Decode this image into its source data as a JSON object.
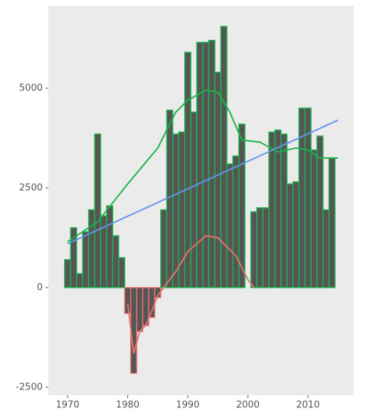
{
  "chart_data": {
    "type": "bar",
    "x": [
      1970,
      1971,
      1972,
      1973,
      1974,
      1975,
      1976,
      1977,
      1978,
      1979,
      1980,
      1981,
      1982,
      1983,
      1984,
      1985,
      1986,
      1987,
      1988,
      1989,
      1990,
      1991,
      1992,
      1993,
      1994,
      1995,
      1996,
      1997,
      1998,
      1999,
      2000,
      2001,
      2002,
      2003,
      2004,
      2005,
      2006,
      2007,
      2008,
      2009,
      2010,
      2011,
      2012,
      2013,
      2014,
      2015
    ],
    "values": [
      700,
      1500,
      350,
      1400,
      1950,
      3850,
      1800,
      2050,
      1300,
      750,
      -650,
      -2150,
      -1100,
      -950,
      -750,
      -250,
      1950,
      4450,
      3850,
      3900,
      5900,
      4400,
      6150,
      6150,
      6200,
      5400,
      6550,
      3100,
      3300,
      4100,
      0,
      1900,
      2000,
      2000,
      3900,
      3950,
      3850,
      2600,
      2650,
      4500,
      4500,
      3450,
      3800,
      1950,
      3250,
      null
    ],
    "bar_fill": "#555555",
    "positive_color": "#1db34a",
    "negative_color": "#e8736c",
    "lines": [
      {
        "color": "#1db34a",
        "x": [
          1970,
          1975,
          1980,
          1985,
          1988,
          1990,
          1993,
          1995,
          1997,
          1999,
          2002,
          2005,
          2008,
          2010,
          2012,
          2015
        ],
        "values": [
          1150,
          1650,
          2600,
          3500,
          4400,
          4700,
          4950,
          4900,
          4400,
          3700,
          3650,
          3400,
          3500,
          3450,
          3250,
          3250
        ]
      },
      {
        "color": "#6495ed",
        "x": [
          1970,
          2015
        ],
        "values": [
          1100,
          4200
        ]
      },
      {
        "color": "#e8736c",
        "x": [
          1980,
          1981,
          1982,
          1983,
          1984,
          1985,
          1986
        ],
        "values": [
          -400,
          -1650,
          -1100,
          -950,
          -600,
          -200,
          0
        ]
      },
      {
        "color": "#e8736c",
        "x": [
          1986,
          1988,
          1990,
          1993,
          1995,
          1998,
          2000,
          2001
        ],
        "values": [
          0,
          400,
          900,
          1300,
          1250,
          800,
          200,
          0
        ]
      }
    ],
    "xlim": [
      1966.8,
      2017.6
    ],
    "ylim": [
      -2700,
      7070
    ],
    "xticks": [
      1970,
      1980,
      1990,
      2000,
      2010
    ],
    "yticks": [
      -2500,
      0,
      2500,
      5000
    ]
  }
}
